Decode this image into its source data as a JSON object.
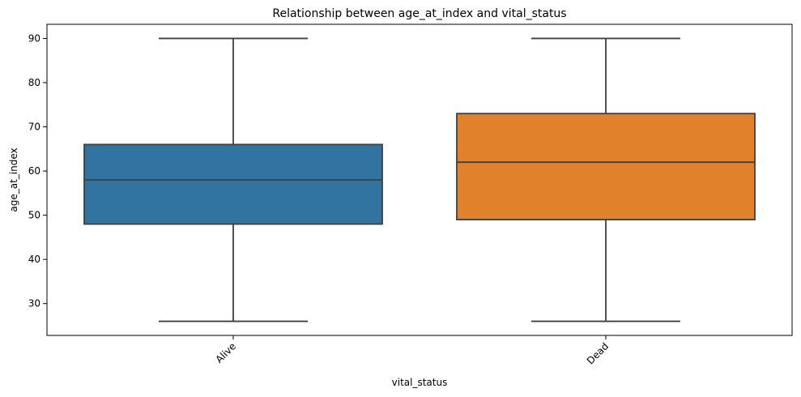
{
  "chart_data": {
    "type": "box",
    "title": "Relationship between age_at_index and vital_status",
    "xlabel": "vital_status",
    "ylabel": "age_at_index",
    "ylim": [
      22.8,
      93.2
    ],
    "yticks": [
      30,
      40,
      50,
      60,
      70,
      80,
      90
    ],
    "x_tick_rotation_deg": 45,
    "grid": false,
    "categories": [
      "Alive",
      "Dead"
    ],
    "boxes": [
      {
        "category": "Alive",
        "whisker_low": 26,
        "q1": 48,
        "median": 58,
        "q3": 66,
        "whisker_high": 90,
        "color": "#3274a1"
      },
      {
        "category": "Dead",
        "whisker_low": 26,
        "q1": 49,
        "median": 62,
        "q3": 73,
        "whisker_high": 90,
        "color": "#e1812c"
      }
    ],
    "line_color": "#3f3f3f"
  }
}
